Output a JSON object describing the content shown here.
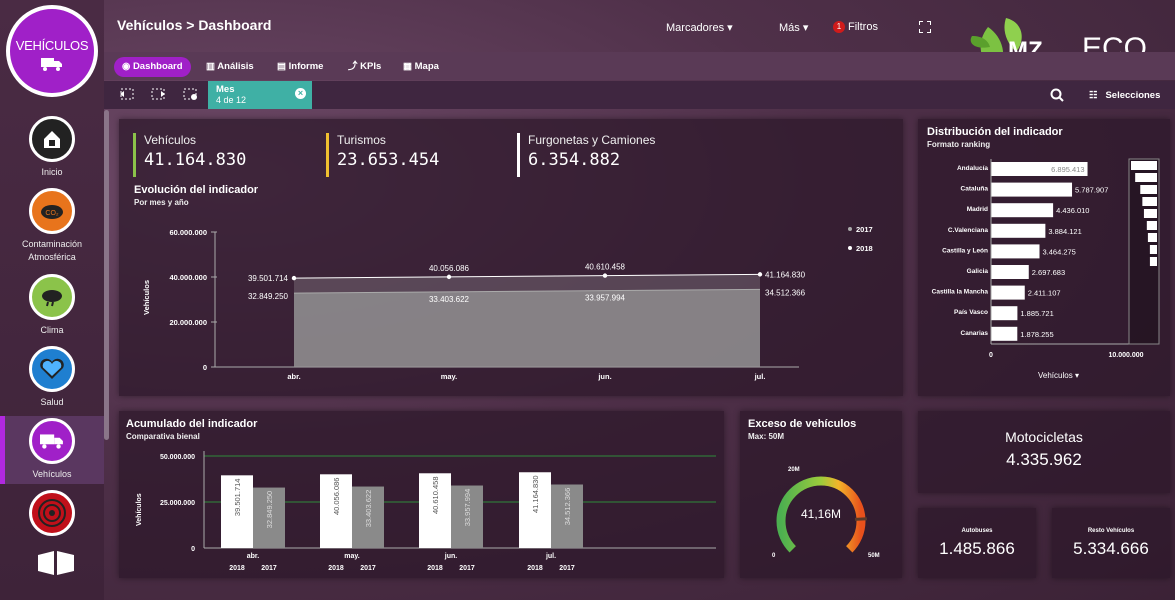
{
  "brand": {
    "title": "VEHÍCULOS"
  },
  "header": {
    "title": "Vehículos > Dashboard",
    "menus": {
      "marcadores": "Marcadores",
      "mas": "Más",
      "filtros_count": "1",
      "filtros": "Filtros"
    }
  },
  "logo": {
    "left": "MZ",
    "right": "ECO"
  },
  "tabs": [
    {
      "label": "Dashboard"
    },
    {
      "label": "Análisis"
    },
    {
      "label": "Informe"
    },
    {
      "label": "KPIs"
    },
    {
      "label": "Mapa"
    }
  ],
  "selection": {
    "field": "Mes",
    "value": "4 de 12",
    "selecciones": "Selecciones"
  },
  "sidebar": [
    {
      "label": "Inicio",
      "icon": "home-icon"
    },
    {
      "label": "Contaminación Atmosférica",
      "icon": "co2-icon"
    },
    {
      "label": "Clima",
      "icon": "climate-icon"
    },
    {
      "label": "Salud",
      "icon": "heart-icon"
    },
    {
      "label": "Vehículos",
      "icon": "truck-icon"
    },
    {
      "label": "",
      "icon": "target-icon"
    }
  ],
  "kpis": [
    {
      "label": "Vehículos",
      "value": "41.164.830",
      "color": "#8bc34a"
    },
    {
      "label": "Turismos",
      "value": "23.653.454",
      "color": "#f0c030"
    },
    {
      "label": "Furgonetas y Camiones",
      "value": "6.354.882",
      "color": "#ffffff"
    }
  ],
  "evolucion": {
    "title": "Evolución del indicador",
    "subtitle": "Por mes y año"
  },
  "distribucion": {
    "title": "Distribución del indicador",
    "subtitle": "Formato ranking",
    "axis_label": "Vehículos"
  },
  "acumulado": {
    "title": "Acumulado del indicador",
    "subtitle": "Comparativa bienal"
  },
  "exceso": {
    "title": "Exceso de vehículos",
    "subtitle": "Max: 50M",
    "value": "41,16M",
    "min": "0",
    "mid": "20M",
    "max": "50M"
  },
  "motos": {
    "label": "Motocicletas",
    "value": "4.335.962"
  },
  "autobuses": {
    "label": "Autobuses",
    "value": "1.485.866"
  },
  "resto": {
    "label": "Resto Vehículos",
    "value": "5.334.666"
  },
  "chart_data": [
    {
      "type": "area",
      "title": "Evolución del indicador",
      "ylabel": "Vehículos",
      "x": [
        "abr.",
        "may.",
        "jun.",
        "jul."
      ],
      "ylim": [
        0,
        60000000
      ],
      "yticks": [
        "60.000.000",
        "40.000.000",
        "20.000.000",
        "0"
      ],
      "series": [
        {
          "name": "2017",
          "values": [
            32849250,
            33403622,
            33957994,
            34512366
          ],
          "labels": [
            "32.849.250",
            "33.403.622",
            "33.957.994",
            "34.512.366"
          ],
          "color": "#9a9a9a"
        },
        {
          "name": "2018",
          "values": [
            39501714,
            40056086,
            40610458,
            41164830
          ],
          "labels": [
            "39.501.714",
            "40.056.086",
            "40.610.458",
            "41.164.830"
          ],
          "color": "#ffffff"
        }
      ],
      "legend": "top-right"
    },
    {
      "type": "bar",
      "orientation": "horizontal",
      "xlabel": "Vehículos",
      "xlim": [
        0,
        10000000
      ],
      "xticks": [
        "0",
        "10.000.000"
      ],
      "categories": [
        "Andalucía",
        "Cataluña",
        "Madrid",
        "C.Valenciana",
        "Castilla y León",
        "Galicia",
        "Castilla la Mancha",
        "País Vasco",
        "Canarias"
      ],
      "values": [
        6895413,
        5787907,
        4436010,
        3884121,
        3464275,
        2697683,
        2411107,
        1885721,
        1878255
      ],
      "labels": [
        "6.895.413",
        "5.787.907",
        "4.436.010",
        "3.884.121",
        "3.464.275",
        "2.697.683",
        "2.411.107",
        "1.885.721",
        "1.878.255"
      ]
    },
    {
      "type": "bar",
      "ylabel": "Vehículos",
      "categories": [
        "abr.",
        "may.",
        "jun.",
        "jul."
      ],
      "ylim": [
        0,
        50000000
      ],
      "yticks": [
        "50.000.000",
        "25.000.000",
        "0"
      ],
      "series": [
        {
          "name": "2018",
          "values": [
            39501714,
            40056086,
            40610458,
            41164830
          ],
          "labels": [
            "39.501.714",
            "40.056.086",
            "40.610.458",
            "41.164.830"
          ],
          "color": "#ffffff"
        },
        {
          "name": "2017",
          "values": [
            32849250,
            33403622,
            33957994,
            34512366
          ],
          "labels": [
            "32.849.250",
            "33.403.622",
            "33.957.994",
            "34.512.366"
          ],
          "color": "#8a8a8a"
        }
      ]
    },
    {
      "type": "gauge",
      "value": 41.16,
      "max": 50,
      "unit": "M"
    }
  ]
}
